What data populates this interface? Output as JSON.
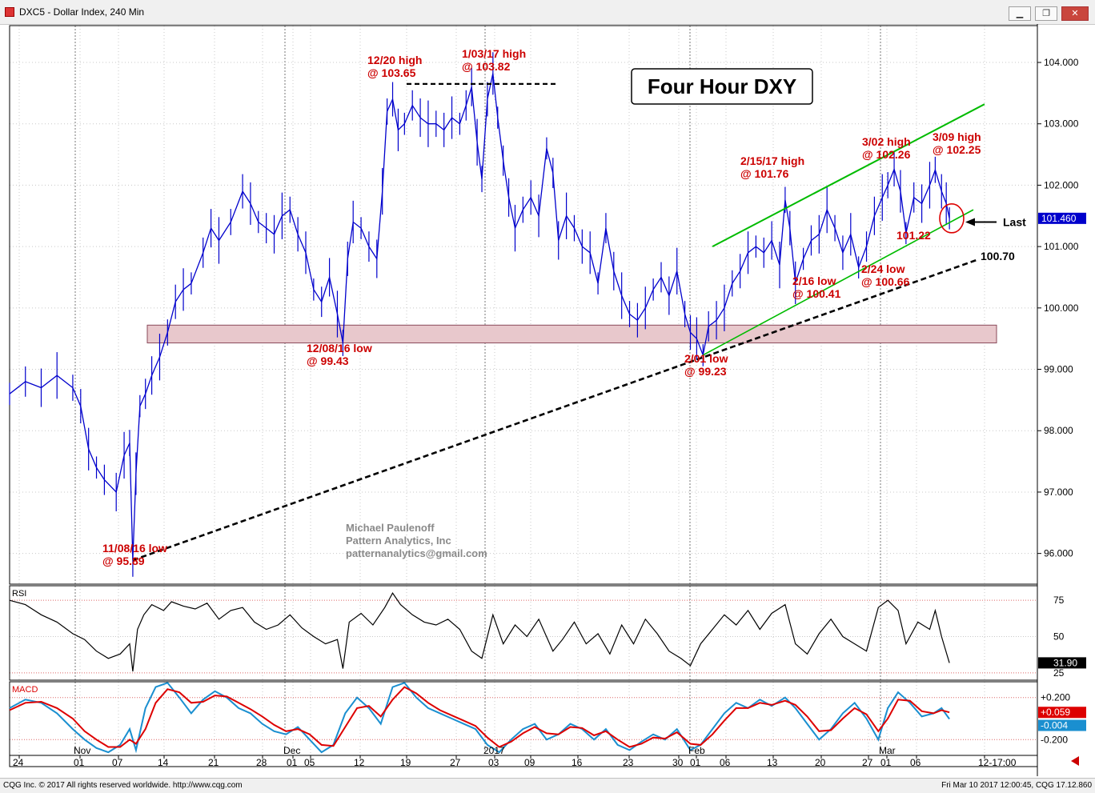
{
  "window": {
    "title": "DXC5 - Dollar Index, 240 Min",
    "minimize_icon": "minimize-icon",
    "maximize_icon": "restore-icon",
    "close_icon": "close-icon"
  },
  "status": {
    "left": "CQG Inc. © 2017 All rights reserved worldwide. http://www.cqg.com",
    "right": "Fri Mar 10 2017 12:00:45, CQG 17.12.860"
  },
  "colors": {
    "price": "#0000cc",
    "annotation": "#cc0000",
    "channel": "#00bb00",
    "trend": "#000000",
    "support_zone": "#e8c8cc",
    "rsi": "#000000",
    "macd_line": "#1a8fd0",
    "signal_line": "#dd0000"
  },
  "chart_data": [
    {
      "type": "line",
      "panel": "price",
      "title": "Four Hour DXY",
      "y_range": [
        95.5,
        104.6
      ],
      "y_ticks": [
        "104.000",
        "103.000",
        "102.000",
        "101.000",
        "100.000",
        "99.000",
        "98.000",
        "97.000",
        "96.000"
      ],
      "last_value": "101.460",
      "last_label": "Last",
      "x_ticks": [
        "24",
        "01",
        "07",
        "14",
        "21",
        "28",
        "01",
        "05",
        "12",
        "19",
        "27",
        "03",
        "09",
        "16",
        "23",
        "30",
        "01",
        "06",
        "13",
        "20",
        "27",
        "01",
        "06",
        "12-17:00"
      ],
      "month_labels": [
        "Nov",
        "Dec",
        "2017",
        "Feb",
        "Mar"
      ],
      "session_time": "12-17:00",
      "series": [
        {
          "x": [
            0,
            20,
            40,
            60,
            80,
            90,
            100,
            110,
            120,
            135,
            145,
            152,
            156,
            160,
            165,
            172,
            180,
            190,
            200,
            210,
            220,
            230,
            245,
            255,
            265,
            280,
            295,
            305,
            315,
            325,
            335,
            345,
            355,
            365,
            375,
            385,
            395,
            405,
            415,
            422,
            428,
            435,
            445,
            455,
            465,
            472,
            478,
            485,
            492,
            500,
            510,
            520,
            530,
            540,
            550,
            560,
            570,
            578,
            585,
            592,
            598,
            605,
            612,
            618,
            625,
            632,
            640,
            650,
            660,
            670,
            680,
            688,
            695,
            705,
            715,
            725,
            735,
            745,
            755,
            765,
            775,
            785,
            795,
            805,
            815,
            825,
            835,
            845,
            855,
            862,
            870,
            878,
            885,
            895,
            905,
            915,
            925,
            935,
            945,
            955,
            965,
            975,
            982,
            988,
            995,
            1005,
            1015,
            1025,
            1035,
            1045,
            1055,
            1065,
            1075,
            1085,
            1095,
            1105,
            1112,
            1120,
            1128,
            1135,
            1145,
            1155,
            1165,
            1172,
            1180,
            1186,
            1190
          ],
          "values": [
            98.6,
            98.8,
            98.7,
            98.9,
            98.7,
            98.4,
            97.7,
            97.4,
            97.2,
            97.0,
            97.6,
            97.8,
            95.9,
            97.3,
            98.4,
            98.6,
            98.9,
            99.2,
            99.6,
            100.1,
            100.3,
            100.4,
            100.9,
            101.3,
            101.1,
            101.4,
            101.9,
            101.7,
            101.4,
            101.3,
            101.2,
            101.5,
            101.6,
            101.2,
            100.9,
            100.3,
            100.1,
            100.5,
            99.9,
            99.43,
            100.8,
            101.4,
            101.3,
            101.0,
            100.8,
            101.9,
            103.2,
            103.4,
            102.9,
            103.0,
            103.3,
            103.1,
            103.0,
            103.0,
            102.9,
            103.1,
            103.0,
            103.3,
            103.6,
            102.7,
            102.1,
            103.4,
            103.82,
            103.1,
            102.4,
            101.8,
            101.3,
            101.6,
            101.8,
            101.5,
            102.6,
            102.2,
            101.1,
            101.5,
            101.3,
            101.0,
            100.9,
            100.4,
            101.3,
            100.6,
            100.2,
            99.9,
            99.8,
            100.0,
            100.3,
            100.5,
            100.2,
            100.6,
            99.9,
            99.6,
            99.5,
            99.23,
            99.7,
            99.8,
            100.0,
            100.4,
            100.6,
            100.9,
            101.0,
            100.9,
            101.1,
            100.7,
            101.76,
            101.3,
            100.41,
            100.8,
            101.1,
            101.2,
            101.6,
            101.3,
            100.9,
            101.2,
            100.66,
            101.0,
            101.5,
            101.8,
            102.0,
            102.26,
            101.9,
            101.22,
            101.8,
            101.7,
            102.0,
            102.25,
            101.9,
            101.7,
            101.46
          ]
        }
      ],
      "annotations": [
        {
          "line1": "12/20 high",
          "line2": "@ 103.65"
        },
        {
          "line1": "1/03/17 high",
          "line2": "@ 103.82"
        },
        {
          "line1": "2/15/17 high",
          "line2": "@ 101.76"
        },
        {
          "line1": "3/02 high",
          "line2": "@ 102.26"
        },
        {
          "line1": "3/09 high",
          "line2": "@ 102.25"
        },
        {
          "line1": "12/08/16 low",
          "line2": "@ 99.43"
        },
        {
          "line1": "2/01 low",
          "line2": "@ 99.23"
        },
        {
          "line1": "2/16 low",
          "line2": "@ 100.41"
        },
        {
          "line1": "2/24 low",
          "line2": "@ 100.66"
        },
        {
          "line1": "11/08/16 low",
          "line2": "@ 95.89"
        },
        {
          "line1": "101.22",
          "line2": ""
        },
        {
          "line1": "100.70",
          "line2": ""
        }
      ],
      "watermark": [
        "Michael Paulenoff",
        "Pattern Analytics, Inc",
        "patternanalytics@gmail.com"
      ]
    },
    {
      "type": "line",
      "panel": "rsi",
      "title": "RSI",
      "y_range": [
        20,
        85
      ],
      "y_ticks": [
        "75",
        "50",
        "25"
      ],
      "last_value": "31.90",
      "series": [
        {
          "x": [
            0,
            20,
            40,
            60,
            80,
            95,
            110,
            125,
            140,
            152,
            156,
            162,
            170,
            180,
            195,
            205,
            220,
            235,
            250,
            265,
            280,
            295,
            310,
            325,
            340,
            355,
            370,
            385,
            400,
            415,
            422,
            430,
            445,
            460,
            475,
            485,
            495,
            510,
            525,
            540,
            555,
            570,
            585,
            598,
            612,
            625,
            640,
            655,
            670,
            688,
            700,
            715,
            730,
            745,
            760,
            775,
            790,
            805,
            820,
            835,
            850,
            862,
            875,
            890,
            905,
            920,
            935,
            950,
            965,
            982,
            995,
            1010,
            1025,
            1040,
            1055,
            1070,
            1085,
            1100,
            1112,
            1125,
            1135,
            1150,
            1165,
            1172,
            1180,
            1190
          ],
          "values": [
            75,
            72,
            65,
            60,
            52,
            48,
            40,
            35,
            38,
            45,
            26,
            55,
            65,
            72,
            68,
            74,
            71,
            69,
            73,
            62,
            68,
            70,
            60,
            55,
            58,
            65,
            56,
            50,
            45,
            48,
            28,
            60,
            66,
            58,
            70,
            80,
            72,
            65,
            60,
            58,
            62,
            55,
            40,
            35,
            65,
            45,
            58,
            50,
            62,
            40,
            48,
            60,
            45,
            52,
            38,
            58,
            45,
            62,
            52,
            40,
            35,
            30,
            45,
            55,
            65,
            58,
            68,
            55,
            66,
            72,
            45,
            38,
            52,
            62,
            50,
            45,
            40,
            70,
            75,
            68,
            45,
            60,
            55,
            68,
            50,
            31.9
          ]
        }
      ]
    },
    {
      "type": "line",
      "panel": "macd",
      "title": "MACD",
      "y_range": [
        -0.35,
        0.35
      ],
      "y_ticks": [
        "+0.200",
        "-0.200"
      ],
      "last_values": [
        "+0.059",
        "-0.004"
      ],
      "series": [
        {
          "name": "MACD",
          "x": [
            0,
            20,
            40,
            60,
            80,
            95,
            110,
            125,
            140,
            152,
            160,
            172,
            185,
            200,
            215,
            230,
            245,
            260,
            275,
            290,
            305,
            320,
            335,
            350,
            365,
            380,
            395,
            410,
            425,
            440,
            455,
            470,
            485,
            500,
            515,
            530,
            545,
            560,
            575,
            590,
            605,
            620,
            635,
            650,
            665,
            680,
            695,
            710,
            725,
            740,
            755,
            770,
            785,
            800,
            815,
            830,
            845,
            862,
            875,
            890,
            905,
            920,
            935,
            950,
            965,
            982,
            995,
            1010,
            1025,
            1040,
            1055,
            1070,
            1085,
            1100,
            1112,
            1125,
            1140,
            1155,
            1170,
            1180,
            1190
          ],
          "values": [
            0.1,
            0.18,
            0.15,
            0.05,
            -0.1,
            -0.2,
            -0.28,
            -0.32,
            -0.25,
            -0.1,
            -0.3,
            0.1,
            0.3,
            0.34,
            0.2,
            0.05,
            0.18,
            0.26,
            0.2,
            0.1,
            0.05,
            -0.05,
            -0.12,
            -0.15,
            -0.08,
            -0.2,
            -0.32,
            -0.25,
            0.05,
            0.2,
            0.1,
            -0.05,
            0.3,
            0.34,
            0.2,
            0.1,
            0.05,
            0.0,
            -0.05,
            -0.1,
            -0.25,
            -0.32,
            -0.2,
            -0.1,
            -0.05,
            -0.2,
            -0.15,
            -0.05,
            -0.1,
            -0.2,
            -0.1,
            -0.25,
            -0.3,
            -0.22,
            -0.15,
            -0.2,
            -0.1,
            -0.3,
            -0.25,
            -0.1,
            0.05,
            0.15,
            0.1,
            0.18,
            0.12,
            0.2,
            0.1,
            -0.05,
            -0.2,
            -0.1,
            0.05,
            0.15,
            0.0,
            -0.2,
            0.1,
            0.25,
            0.15,
            0.02,
            0.05,
            0.1,
            -0.004
          ]
        },
        {
          "name": "Signal",
          "x": [
            0,
            20,
            40,
            60,
            80,
            95,
            110,
            125,
            140,
            152,
            160,
            172,
            185,
            200,
            215,
            230,
            245,
            260,
            275,
            290,
            305,
            320,
            335,
            350,
            365,
            380,
            395,
            410,
            425,
            440,
            455,
            470,
            485,
            500,
            515,
            530,
            545,
            560,
            575,
            590,
            605,
            620,
            635,
            650,
            665,
            680,
            695,
            710,
            725,
            740,
            755,
            770,
            785,
            800,
            815,
            830,
            845,
            862,
            875,
            890,
            905,
            920,
            935,
            950,
            965,
            982,
            995,
            1010,
            1025,
            1040,
            1055,
            1070,
            1085,
            1100,
            1112,
            1125,
            1140,
            1155,
            1170,
            1180,
            1190
          ],
          "values": [
            0.08,
            0.15,
            0.16,
            0.1,
            0.0,
            -0.12,
            -0.2,
            -0.27,
            -0.27,
            -0.2,
            -0.24,
            -0.1,
            0.15,
            0.28,
            0.25,
            0.15,
            0.16,
            0.22,
            0.21,
            0.15,
            0.09,
            0.02,
            -0.06,
            -0.12,
            -0.1,
            -0.15,
            -0.25,
            -0.26,
            -0.08,
            0.1,
            0.12,
            0.02,
            0.18,
            0.3,
            0.24,
            0.15,
            0.08,
            0.03,
            -0.02,
            -0.07,
            -0.18,
            -0.27,
            -0.22,
            -0.14,
            -0.08,
            -0.14,
            -0.15,
            -0.08,
            -0.09,
            -0.16,
            -0.12,
            -0.2,
            -0.27,
            -0.24,
            -0.18,
            -0.19,
            -0.13,
            -0.24,
            -0.25,
            -0.15,
            -0.02,
            0.1,
            0.1,
            0.15,
            0.13,
            0.17,
            0.13,
            0.02,
            -0.12,
            -0.11,
            0.0,
            0.1,
            0.04,
            -0.12,
            0.0,
            0.18,
            0.17,
            0.07,
            0.05,
            0.08,
            0.059
          ]
        }
      ]
    }
  ]
}
